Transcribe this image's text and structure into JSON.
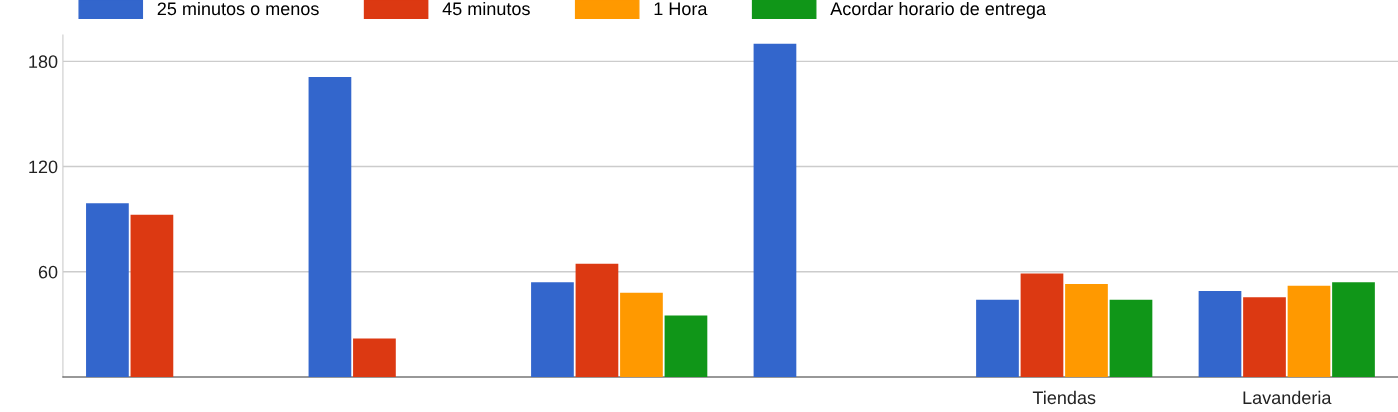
{
  "chart_data": {
    "type": "bar",
    "categories": [
      null,
      null,
      null,
      null,
      "Tiendas",
      "Lavanderia"
    ],
    "series": [
      {
        "name": "25 minutos o menos",
        "color": "#3366cc",
        "values": [
          99,
          171,
          54,
          190,
          44,
          49
        ]
      },
      {
        "name": "45 minutos",
        "color": "#dc3912",
        "values": [
          92.5,
          22,
          64.5,
          null,
          59,
          45.5
        ]
      },
      {
        "name": "1 Hora",
        "color": "#ff9900",
        "values": [
          null,
          null,
          48,
          null,
          53,
          52
        ]
      },
      {
        "name": "Acordar horario de entrega",
        "color": "#109618",
        "values": [
          null,
          null,
          35,
          null,
          44,
          54
        ]
      }
    ],
    "ylim": [
      0,
      195
    ],
    "yticks": [
      60,
      120,
      180
    ],
    "grid": "y",
    "legend": "top left"
  }
}
